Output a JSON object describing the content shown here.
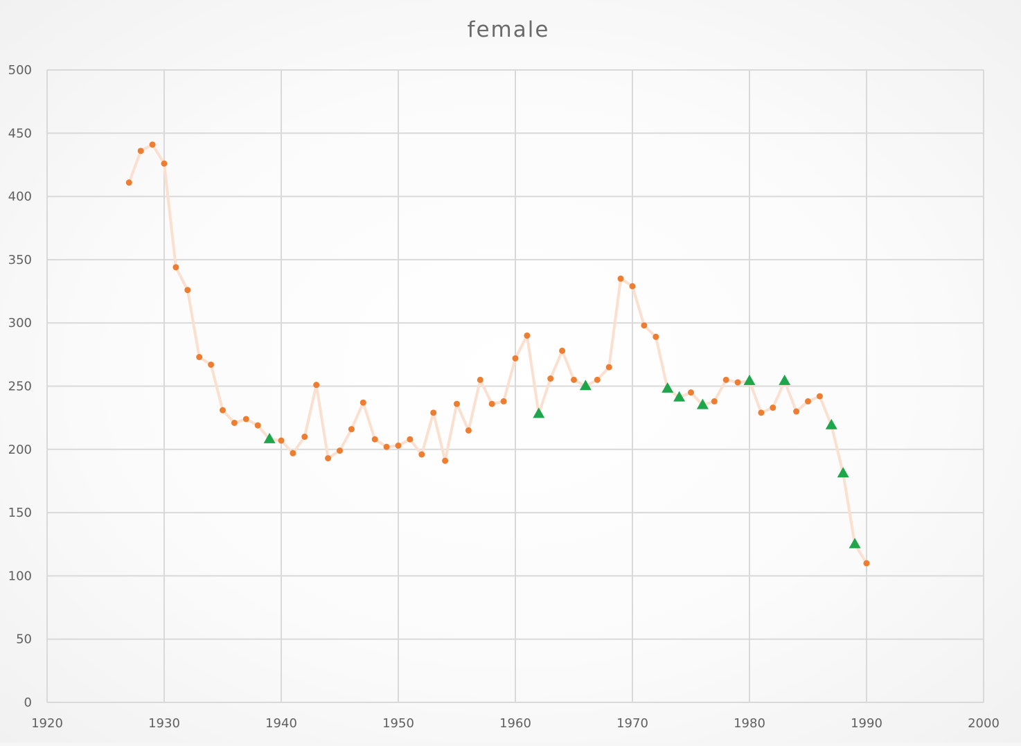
{
  "chart_data": {
    "type": "line",
    "title": "female",
    "xlabel": "",
    "ylabel": "",
    "xlim": [
      1920,
      2000
    ],
    "ylim": [
      0,
      500
    ],
    "grid": true,
    "x_ticks": [
      "1920",
      "1930",
      "1940",
      "1950",
      "1960",
      "1970",
      "1980",
      "1990",
      "2000"
    ],
    "y_ticks": [
      "0",
      "50",
      "100",
      "150",
      "200",
      "250",
      "300",
      "350",
      "400",
      "450",
      "500"
    ],
    "colors": {
      "line": "#fbe0d0",
      "circle_marker": "#ed7d31",
      "triangle_marker": "#1fa64b",
      "grid": "#d9d9d9"
    },
    "series": [
      {
        "marker": "circle",
        "points": [
          [
            1927,
            411
          ],
          [
            1928,
            436
          ],
          [
            1929,
            441
          ],
          [
            1930,
            426
          ],
          [
            1931,
            344
          ],
          [
            1932,
            326
          ],
          [
            1933,
            273
          ],
          [
            1934,
            267
          ],
          [
            1935,
            231
          ],
          [
            1936,
            221
          ],
          [
            1937,
            224
          ],
          [
            1938,
            219
          ],
          [
            1940,
            207
          ],
          [
            1941,
            197
          ],
          [
            1942,
            210
          ],
          [
            1943,
            251
          ],
          [
            1944,
            193
          ],
          [
            1945,
            199
          ],
          [
            1946,
            216
          ],
          [
            1947,
            237
          ],
          [
            1948,
            208
          ],
          [
            1949,
            202
          ],
          [
            1950,
            203
          ],
          [
            1951,
            208
          ],
          [
            1952,
            196
          ],
          [
            1953,
            229
          ],
          [
            1954,
            191
          ],
          [
            1955,
            236
          ],
          [
            1956,
            215
          ],
          [
            1957,
            255
          ],
          [
            1958,
            236
          ],
          [
            1959,
            238
          ],
          [
            1960,
            272
          ],
          [
            1961,
            290
          ],
          [
            1963,
            256
          ],
          [
            1964,
            278
          ],
          [
            1965,
            255
          ],
          [
            1967,
            255
          ],
          [
            1968,
            265
          ],
          [
            1969,
            335
          ],
          [
            1970,
            329
          ],
          [
            1971,
            298
          ],
          [
            1972,
            289
          ],
          [
            1975,
            245
          ],
          [
            1977,
            238
          ],
          [
            1978,
            255
          ],
          [
            1979,
            253
          ],
          [
            1981,
            229
          ],
          [
            1982,
            233
          ],
          [
            1984,
            230
          ],
          [
            1985,
            238
          ],
          [
            1986,
            242
          ],
          [
            1990,
            110
          ]
        ]
      },
      {
        "marker": "triangle",
        "points": [
          [
            1939,
            208
          ],
          [
            1962,
            228
          ],
          [
            1966,
            250
          ],
          [
            1973,
            248
          ],
          [
            1974,
            241
          ],
          [
            1976,
            235
          ],
          [
            1980,
            254
          ],
          [
            1983,
            254
          ],
          [
            1987,
            219
          ],
          [
            1988,
            181
          ],
          [
            1989,
            125
          ]
        ]
      }
    ]
  }
}
